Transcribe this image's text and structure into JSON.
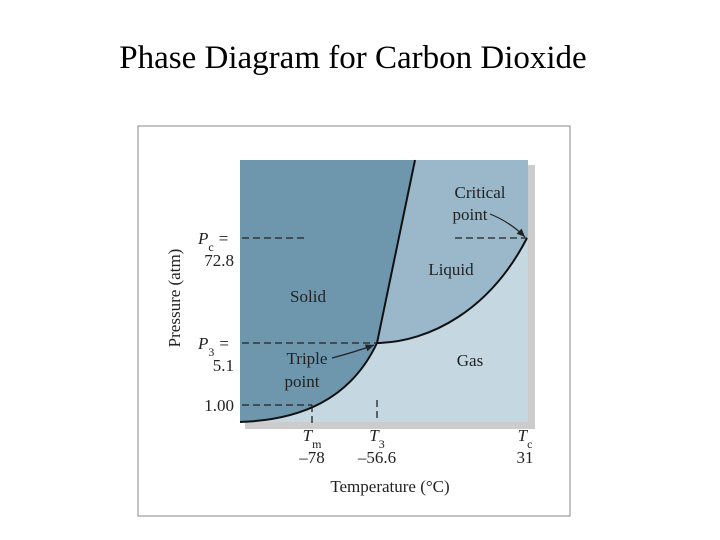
{
  "header": {
    "title": "Phase Diagram for Carbon Dioxide"
  },
  "diagram": {
    "regions": [
      "Solid",
      "Liquid",
      "Gas"
    ],
    "critical_point": [
      "Critical",
      "point"
    ],
    "triple_point": [
      "Triple",
      "point"
    ],
    "y_labels": [
      {
        "symbol": "P",
        "sub": "c",
        "eq": "=",
        "value": "72.8"
      },
      {
        "symbol": "P",
        "sub": "3",
        "eq": "=",
        "value": "5.1"
      },
      {
        "value": "1.00"
      }
    ],
    "x_labels": [
      {
        "symbol": "T",
        "sub": "m",
        "value": "–78"
      },
      {
        "symbol": "T",
        "sub": "3",
        "value": "–56.6"
      },
      {
        "symbol": "T",
        "sub": "c",
        "value": "31"
      }
    ],
    "y_axis_title": "Pressure (atm)",
    "x_axis_title": "Temperature (°C)"
  }
}
